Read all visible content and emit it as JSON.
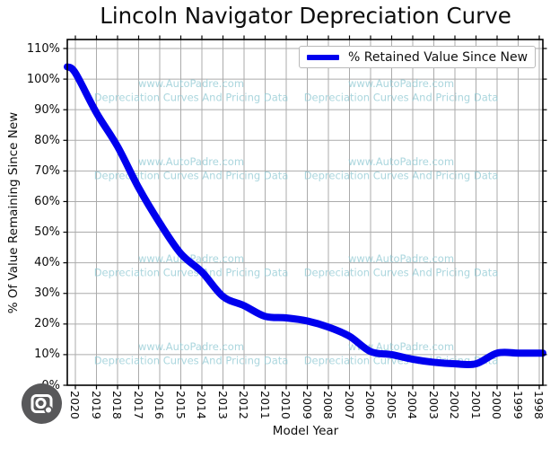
{
  "chart": {
    "title": "Lincoln Navigator Depreciation Curve",
    "x_label": "Model Year",
    "y_label": "% Of Value Remaining Since New",
    "legend": {
      "label": "% Retained Value Since New"
    },
    "watermark": {
      "line1": "www.AutoPadre.com",
      "line2": "Depreciation Curves And Pricing Data"
    },
    "colors": {
      "line": "#0000ee",
      "grid": "#ababab",
      "spine": "#000000",
      "text": "#0d0d0d",
      "watermark": "#8fc9d3",
      "legend_border": "#b9b9b9",
      "overlay_circle": "#58585a",
      "overlay_glyph": "#ffffff"
    },
    "icons": {
      "overlay": "camera-icon"
    }
  },
  "chart_data": {
    "type": "line",
    "title": "Lincoln Navigator Depreciation Curve",
    "xlabel": "Model Year",
    "ylabel": "% Of Value Remaining Since New",
    "categories": [
      "2020",
      "2019",
      "2018",
      "2017",
      "2016",
      "2015",
      "2014",
      "2013",
      "2012",
      "2011",
      "2010",
      "2009",
      "2008",
      "2007",
      "2006",
      "2005",
      "2004",
      "2003",
      "2002",
      "2001",
      "2000",
      "1999",
      "1998"
    ],
    "series": [
      {
        "name": "% Retained Value Since New",
        "values": [
          102,
          89,
          78,
          64.5,
          53,
          43,
          37,
          29,
          26,
          22.5,
          22,
          21,
          19,
          16,
          11,
          10,
          8.5,
          7.5,
          7,
          7,
          10.5,
          10.5,
          10.5
        ]
      }
    ],
    "y_ticks": [
      "0%",
      "10%",
      "20%",
      "30%",
      "40%",
      "50%",
      "60%",
      "70%",
      "80%",
      "90%",
      "100%",
      "110%"
    ],
    "ylim": [
      0,
      113
    ],
    "x_axis_reversed": true,
    "grid": true,
    "legend_position": "upper right",
    "edge_start_value": 104,
    "edge_end_value": 10.5
  }
}
